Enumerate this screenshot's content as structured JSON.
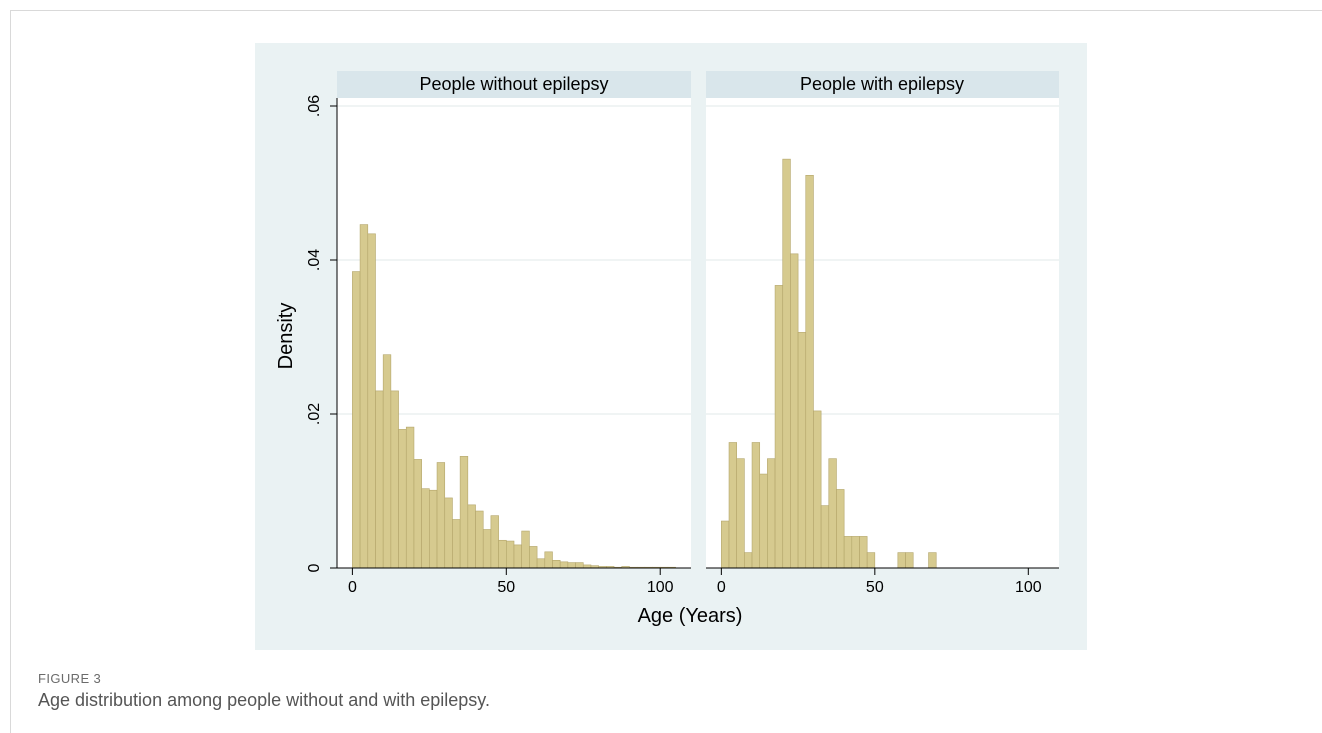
{
  "figure": {
    "label": "FIGURE 3",
    "caption": "Age distribution among people without and with epilepsy."
  },
  "colors": {
    "background": "#eaf2f3",
    "panel": "#ffffff",
    "strip": "#d9e6eb",
    "bar_fill": "#d6ca8f",
    "bar_stroke": "#b3a56a",
    "grid": "#e8eeee",
    "axis": "#000000"
  },
  "chart_data": {
    "type": "bar",
    "subtype": "histogram",
    "xlabel": "Age (Years)",
    "ylabel": "Density",
    "xlim": [
      -5,
      110
    ],
    "ylim": [
      0,
      0.06
    ],
    "xticks": [
      "0",
      "50",
      "100"
    ],
    "xtick_values": [
      0,
      50,
      100
    ],
    "yticks": [
      "0",
      ".02",
      ".04",
      ".06"
    ],
    "ytick_values": [
      0,
      0.02,
      0.04,
      0.06
    ],
    "grid": true,
    "bin_width": 2.5,
    "panels": [
      {
        "name": "People without epilepsy",
        "bin_starts": [
          0,
          2.5,
          5,
          7.5,
          10,
          12.5,
          15,
          17.5,
          20,
          22.5,
          25,
          27.5,
          30,
          32.5,
          35,
          37.5,
          40,
          42.5,
          45,
          47.5,
          50,
          52.5,
          55,
          57.5,
          60,
          62.5,
          65,
          67.5,
          70,
          72.5,
          75,
          77.5,
          80,
          82.5,
          85,
          87.5,
          90,
          92.5,
          95,
          97.5,
          100,
          102.5
        ],
        "values": [
          0.0385,
          0.0446,
          0.0434,
          0.023,
          0.0277,
          0.023,
          0.018,
          0.0183,
          0.0141,
          0.0103,
          0.0101,
          0.0137,
          0.0091,
          0.0063,
          0.0145,
          0.0082,
          0.0074,
          0.005,
          0.0068,
          0.0036,
          0.0035,
          0.003,
          0.0048,
          0.0028,
          0.0012,
          0.0021,
          0.001,
          0.0008,
          0.0007,
          0.0007,
          0.0004,
          0.0003,
          0.0002,
          0.0002,
          0.0001,
          0.0002,
          0.0001,
          0.0001,
          0.0001,
          0.0001,
          0.0001,
          0.0001
        ]
      },
      {
        "name": "People with epilepsy",
        "bin_starts": [
          0,
          2.5,
          5,
          7.5,
          10,
          12.5,
          15,
          17.5,
          20,
          22.5,
          25,
          27.5,
          30,
          32.5,
          35,
          37.5,
          40,
          42.5,
          45,
          47.5,
          50,
          52.5,
          55,
          57.5,
          60,
          62.5,
          65,
          67.5,
          70
        ],
        "values": [
          0.0061,
          0.0163,
          0.0142,
          0.002,
          0.0163,
          0.0122,
          0.0142,
          0.0367,
          0.0531,
          0.0408,
          0.0306,
          0.051,
          0.0204,
          0.0081,
          0.0142,
          0.0102,
          0.0041,
          0.0041,
          0.0041,
          0.002,
          0,
          0,
          0,
          0.002,
          0.002,
          0,
          0,
          0.002,
          0
        ]
      }
    ]
  }
}
